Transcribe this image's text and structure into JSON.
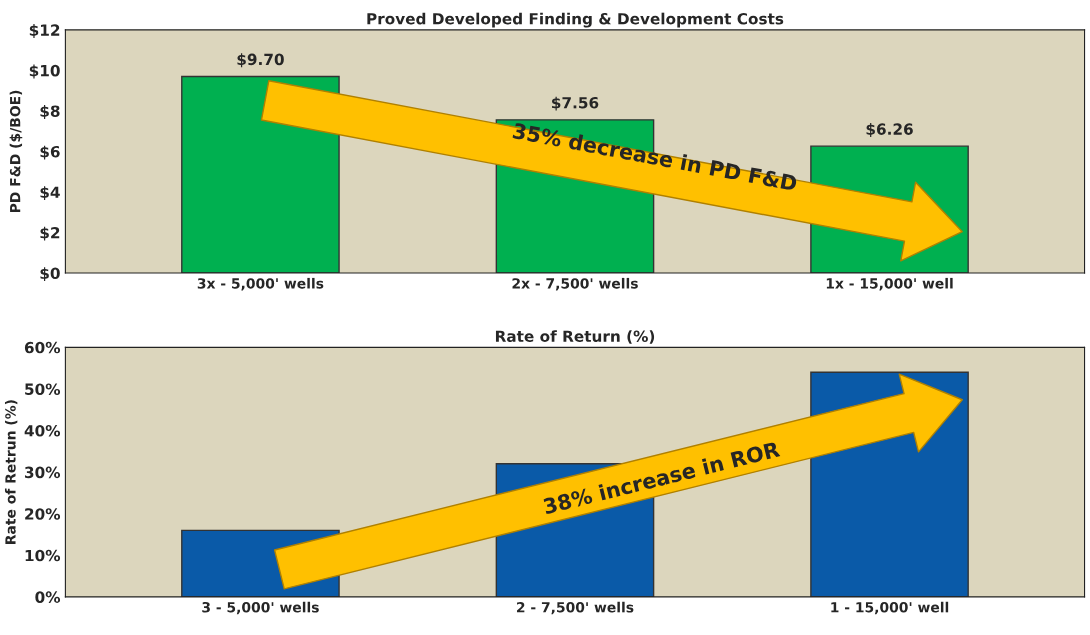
{
  "chart_data": [
    {
      "type": "bar",
      "title": "Proved Developed Finding & Development Costs",
      "ylabel": "PD F&D ($/BOE)",
      "categories": [
        "3x - 5,000' wells",
        "2x - 7,500' wells",
        "1x - 15,000' well"
      ],
      "values": [
        9.7,
        7.56,
        6.26
      ],
      "value_labels": [
        "$9.70",
        "$7.56",
        "$6.26"
      ],
      "color": "#00b050",
      "ylim": [
        0,
        12
      ],
      "yticks": [
        {
          "value": 0,
          "label": "$0"
        },
        {
          "value": 2,
          "label": "$2"
        },
        {
          "value": 4,
          "label": "$4"
        },
        {
          "value": 6,
          "label": "$6"
        },
        {
          "value": 8,
          "label": "$8"
        },
        {
          "value": 10,
          "label": "$10"
        },
        {
          "value": 12,
          "label": "$12"
        }
      ],
      "grid": false,
      "annotations": [
        "35% decrease in PD F&D"
      ]
    },
    {
      "type": "bar",
      "title": "Rate of Return (%)",
      "ylabel": "Rate of Retrun (%)",
      "categories": [
        "3 - 5,000' wells",
        "2 - 7,500' wells",
        "1 - 15,000' well"
      ],
      "values": [
        16,
        32,
        54
      ],
      "color": "#0a5aa8",
      "ylim": [
        0,
        60
      ],
      "yticks": [
        {
          "value": 0,
          "label": "0%"
        },
        {
          "value": 10,
          "label": "10%"
        },
        {
          "value": 20,
          "label": "20%"
        },
        {
          "value": 30,
          "label": "30%"
        },
        {
          "value": 40,
          "label": "40%"
        },
        {
          "value": 50,
          "label": "50%"
        },
        {
          "value": 60,
          "label": "60%"
        }
      ],
      "grid": false,
      "annotations": [
        "38% increase in ROR"
      ]
    }
  ]
}
